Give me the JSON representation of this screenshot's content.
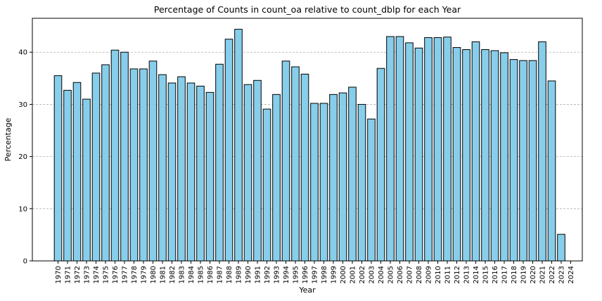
{
  "chart_data": {
    "type": "bar",
    "title": "Percentage of Counts in count_oa relative to count_dblp for each Year",
    "xlabel": "Year",
    "ylabel": "Percentage",
    "ylim": [
      0,
      46.5
    ],
    "yticks": [
      0,
      10,
      20,
      30,
      40
    ],
    "grid": "y-dashed",
    "bar_color": "#87ceeb",
    "edge_color": "#000000",
    "categories": [
      "1970",
      "1971",
      "1972",
      "1973",
      "1974",
      "1975",
      "1976",
      "1977",
      "1978",
      "1979",
      "1980",
      "1981",
      "1982",
      "1983",
      "1984",
      "1985",
      "1986",
      "1987",
      "1988",
      "1989",
      "1990",
      "1991",
      "1992",
      "1993",
      "1994",
      "1995",
      "1996",
      "1997",
      "1998",
      "1999",
      "2000",
      "2001",
      "2002",
      "2003",
      "2004",
      "2005",
      "2006",
      "2007",
      "2008",
      "2009",
      "2010",
      "2011",
      "2012",
      "2013",
      "2014",
      "2015",
      "2016",
      "2017",
      "2018",
      "2019",
      "2020",
      "2021",
      "2022",
      "2023",
      "2024"
    ],
    "values": [
      35.5,
      32.7,
      34.2,
      31.0,
      36.0,
      37.6,
      40.4,
      40.0,
      36.8,
      36.8,
      38.3,
      35.7,
      34.1,
      35.3,
      34.1,
      33.5,
      32.3,
      37.7,
      42.5,
      44.4,
      33.8,
      34.6,
      29.1,
      31.9,
      38.3,
      37.2,
      35.8,
      30.2,
      30.2,
      31.9,
      32.2,
      33.3,
      30.0,
      27.2,
      36.9,
      43.0,
      43.0,
      41.8,
      40.8,
      42.8,
      42.8,
      42.9,
      40.9,
      40.5,
      42.0,
      40.5,
      40.3,
      39.9,
      38.6,
      38.4,
      38.4,
      42.0,
      34.5,
      5.1,
      null
    ]
  }
}
